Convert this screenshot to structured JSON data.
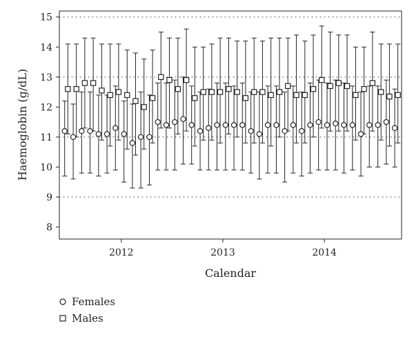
{
  "chart_data": {
    "type": "scatter",
    "xlabel": "Calendar",
    "ylabel": "Haemoglobin (g/dL)",
    "ylim": [
      7.6,
      15.2
    ],
    "yticks": [
      8,
      9,
      10,
      11,
      12,
      13,
      14,
      15
    ],
    "grid_y_dotted": [
      9,
      11,
      13,
      15
    ],
    "xlim": [
      2011.39,
      2014.76
    ],
    "xticks": [
      2012,
      2013,
      2014
    ],
    "xtick_labels": [
      "2012",
      "2013",
      "2014"
    ],
    "legend_position": "bottom-left",
    "series": [
      {
        "name": "Females",
        "marker": "circle",
        "x": [
          2011.458,
          2011.542,
          2011.625,
          2011.708,
          2011.792,
          2011.875,
          2011.958,
          2012.042,
          2012.125,
          2012.208,
          2012.292,
          2012.375,
          2012.458,
          2012.542,
          2012.625,
          2012.708,
          2012.792,
          2012.875,
          2012.958,
          2013.042,
          2013.125,
          2013.208,
          2013.292,
          2013.375,
          2013.458,
          2013.542,
          2013.625,
          2013.708,
          2013.792,
          2013.875,
          2013.958,
          2014.042,
          2014.125,
          2014.208,
          2014.292,
          2014.375,
          2014.458,
          2014.542,
          2014.625,
          2014.708
        ],
        "y": [
          11.2,
          11.0,
          11.2,
          11.2,
          11.1,
          11.1,
          11.3,
          11.1,
          10.8,
          11.0,
          11.0,
          11.5,
          11.4,
          11.5,
          11.6,
          11.4,
          11.2,
          11.3,
          11.4,
          11.4,
          11.4,
          11.4,
          11.2,
          11.1,
          11.4,
          11.4,
          11.2,
          11.4,
          11.2,
          11.4,
          11.5,
          11.4,
          11.45,
          11.4,
          11.4,
          11.1,
          11.4,
          11.4,
          11.5,
          11.3
        ],
        "lower": [
          9.7,
          9.6,
          9.8,
          9.8,
          9.7,
          9.8,
          9.9,
          9.5,
          9.3,
          9.3,
          9.4,
          9.9,
          9.9,
          9.9,
          10.1,
          10.1,
          9.9,
          9.9,
          9.9,
          9.9,
          9.9,
          9.9,
          9.8,
          9.6,
          9.8,
          9.8,
          9.5,
          9.8,
          9.7,
          9.8,
          9.9,
          9.9,
          9.9,
          9.8,
          9.9,
          9.7,
          10.0,
          10.0,
          10.1,
          10.0
        ],
        "upper": [
          12.2,
          12.1,
          12.5,
          12.5,
          12.4,
          12.4,
          12.7,
          12.2,
          12.1,
          12.5,
          12.4,
          12.8,
          12.8,
          12.9,
          13.0,
          12.7,
          12.5,
          12.6,
          12.8,
          12.8,
          12.7,
          12.8,
          12.5,
          12.5,
          12.7,
          12.7,
          12.5,
          12.7,
          12.5,
          12.8,
          12.9,
          12.8,
          12.9,
          12.8,
          12.7,
          12.5,
          12.7,
          12.7,
          12.9,
          12.6
        ]
      },
      {
        "name": "Males",
        "marker": "square",
        "x": [
          2011.458,
          2011.542,
          2011.625,
          2011.708,
          2011.792,
          2011.875,
          2011.958,
          2012.042,
          2012.125,
          2012.208,
          2012.292,
          2012.375,
          2012.458,
          2012.542,
          2012.625,
          2012.708,
          2012.792,
          2012.875,
          2012.958,
          2013.042,
          2013.125,
          2013.208,
          2013.292,
          2013.375,
          2013.458,
          2013.542,
          2013.625,
          2013.708,
          2013.792,
          2013.875,
          2013.958,
          2014.042,
          2014.125,
          2014.208,
          2014.292,
          2014.375,
          2014.458,
          2014.542,
          2014.625,
          2014.708
        ],
        "y": [
          12.6,
          12.6,
          12.8,
          12.8,
          12.55,
          12.4,
          12.5,
          12.4,
          12.2,
          12.0,
          12.3,
          13.0,
          12.9,
          12.6,
          12.9,
          12.3,
          12.5,
          12.5,
          12.5,
          12.6,
          12.5,
          12.3,
          12.5,
          12.5,
          12.4,
          12.5,
          12.7,
          12.4,
          12.4,
          12.6,
          12.9,
          12.7,
          12.8,
          12.7,
          12.4,
          12.6,
          12.8,
          12.5,
          12.35,
          12.4
        ],
        "lower": [
          11.1,
          11.0,
          11.3,
          11.2,
          10.9,
          10.7,
          10.9,
          10.6,
          10.4,
          10.6,
          10.8,
          11.3,
          11.3,
          11.1,
          11.2,
          10.7,
          10.9,
          10.9,
          10.8,
          11.1,
          11.0,
          10.8,
          10.8,
          10.8,
          10.7,
          11.0,
          11.2,
          10.8,
          10.8,
          11.0,
          11.3,
          11.2,
          11.2,
          11.2,
          10.9,
          11.1,
          11.2,
          10.9,
          10.7,
          10.8
        ],
        "upper": [
          14.1,
          14.1,
          14.3,
          14.3,
          14.1,
          14.1,
          14.1,
          13.9,
          13.8,
          13.6,
          13.9,
          14.5,
          14.3,
          14.3,
          14.6,
          14.0,
          14.0,
          14.1,
          14.3,
          14.3,
          14.2,
          14.2,
          14.3,
          14.2,
          14.3,
          14.3,
          14.3,
          14.4,
          14.2,
          14.4,
          14.7,
          14.5,
          14.4,
          14.4,
          14.0,
          14.0,
          14.5,
          14.1,
          14.1,
          14.1
        ]
      }
    ]
  }
}
